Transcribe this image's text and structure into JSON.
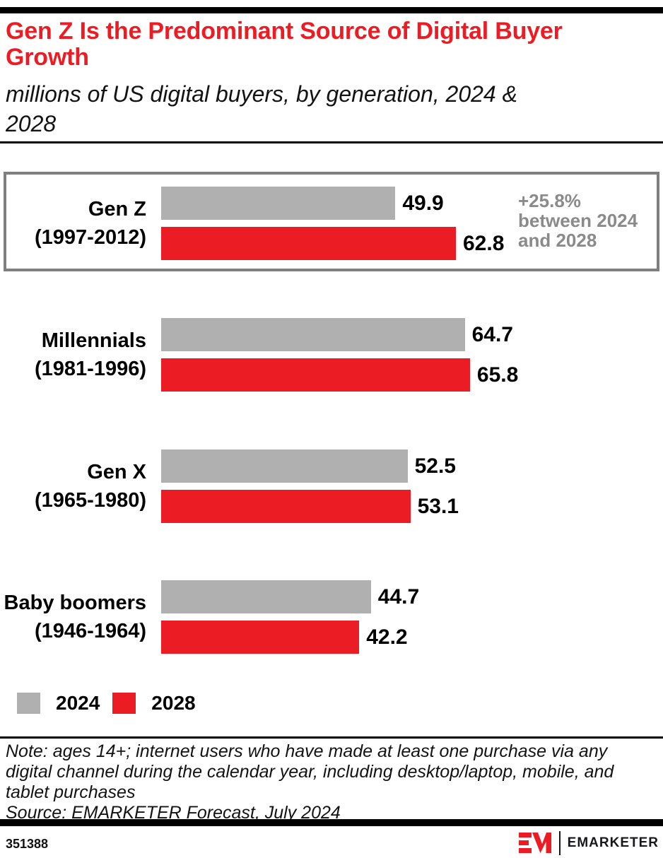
{
  "page": {
    "title_line1": "Gen Z Is the Predominant Source of Digital Buyer",
    "title_line2": "Growth",
    "subtitle_line1": "millions of US digital buyers, by generation, 2024 &",
    "subtitle_line2": "2028",
    "note": "Note: ages 14+; internet users who have made at least one purchase via any digital channel during the calendar year, including desktop/laptop, mobile, and tablet purchases",
    "source": "Source: EMARKETER Forecast, July 2024",
    "chart_id": "351388",
    "brand": "EMARKETER"
  },
  "colors": {
    "red": "#EC1C24",
    "gray_bar": "#B0B0B0",
    "annotation_gray": "#8A8A8A",
    "highlight_border": "#7F7F7F"
  },
  "chart_data": {
    "type": "bar",
    "orientation": "horizontal",
    "title": "Gen Z Is the Predominant Source of Digital Buyer Growth",
    "subtitle": "millions of US digital buyers, by generation, 2024 & 2028",
    "unit": "millions of US digital buyers",
    "categories": [
      "Gen Z",
      "Millennials",
      "Gen X",
      "Baby boomers"
    ],
    "category_years": [
      "(1997-2012)",
      "(1981-1996)",
      "(1965-1980)",
      "(1946-1964)"
    ],
    "series": [
      {
        "name": "2024",
        "color": "#B0B0B0",
        "values": [
          49.9,
          64.7,
          52.5,
          44.7
        ]
      },
      {
        "name": "2028",
        "color": "#EC1C24",
        "values": [
          62.8,
          65.8,
          53.1,
          42.2
        ]
      }
    ],
    "annotation": {
      "target": "Gen Z",
      "lines": [
        "+25.8%",
        "between 2024",
        "and 2028"
      ],
      "text": "+25.8% between 2024 and 2028"
    },
    "value_labels": true,
    "legend_position": "bottom-left",
    "axis": "hidden",
    "xlim": [
      0,
      70
    ]
  }
}
